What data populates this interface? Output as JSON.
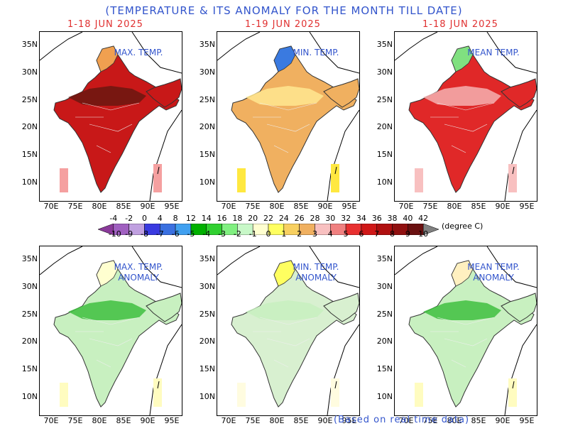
{
  "title": "(TEMPERATURE & ITS  ANOMALY FOR THE MONTH TILL DATE)",
  "footer": "(Based on real time data)",
  "unit": "(degree C)",
  "panels": [
    {
      "id": "max",
      "period": "1-18 JUN 2025",
      "label": [
        "MAX. TEMP."
      ],
      "fill": "#c81818",
      "north": "#f0a050",
      "center": "#6a1810",
      "inset": "#f5a0a0"
    },
    {
      "id": "min",
      "period": "1-19 JUN 2025",
      "label": [
        "MIN. TEMP."
      ],
      "fill": "#f0b060",
      "north": "#3a7ae0",
      "center": "#ffe890",
      "inset": "#ffe840"
    },
    {
      "id": "mean",
      "period": "1-18 JUN 2025",
      "label": [
        "MEAN TEMP."
      ],
      "fill": "#e02828",
      "north": "#80e080",
      "center": "#f4b0b0",
      "inset": "#f8c0c0"
    },
    {
      "id": "maxa",
      "period": "",
      "label": [
        "MAX. TEMP.",
        "ANOMALY"
      ],
      "fill": "#c8f0c0",
      "north": "#ffffd0",
      "center": "#40c040",
      "inset": "#fffcc0"
    },
    {
      "id": "mina",
      "period": "",
      "label": [
        "MIN. TEMP.",
        "ANOMALY"
      ],
      "fill": "#d8f0d0",
      "north": "#ffff60",
      "center": "#c8f0c0",
      "inset": "#fffce0"
    },
    {
      "id": "meana",
      "period": "",
      "label": [
        "MEAN TEMP.",
        "ANOMALY"
      ],
      "fill": "#c8f0c0",
      "north": "#fff0c0",
      "center": "#40c040",
      "inset": "#fffcc0"
    }
  ],
  "yticks": [
    "35N",
    "30N",
    "25N",
    "20N",
    "15N",
    "10N"
  ],
  "xticks": [
    "70E",
    "75E",
    "80E",
    "85E",
    "90E",
    "95E"
  ],
  "colorbar": {
    "top_labels": [
      "-4",
      "-2",
      "0",
      "4",
      "8",
      "12",
      "14",
      "16",
      "18",
      "20",
      "22",
      "24",
      "26",
      "28",
      "30",
      "32",
      "34",
      "36",
      "38",
      "40",
      "42"
    ],
    "bottom_labels": [
      "-10",
      "-9",
      "-8",
      "-7",
      "-6",
      "-5",
      "-4",
      "-3",
      "-2",
      "-1",
      "0",
      "1",
      "2",
      "3",
      "4",
      "5",
      "6",
      "7",
      "8",
      "9",
      "10"
    ],
    "colors": [
      "#8a3a9a",
      "#a060c0",
      "#c0a0e0",
      "#3a3ae0",
      "#3a70e0",
      "#40a0f0",
      "#00b000",
      "#30d030",
      "#80f080",
      "#c8f8c8",
      "#ffffd0",
      "#ffff60",
      "#f8d060",
      "#f0b060",
      "#f8c0c0",
      "#f08080",
      "#e83030",
      "#d01818",
      "#b01010",
      "#901010",
      "#6a1010",
      "#808080"
    ]
  }
}
